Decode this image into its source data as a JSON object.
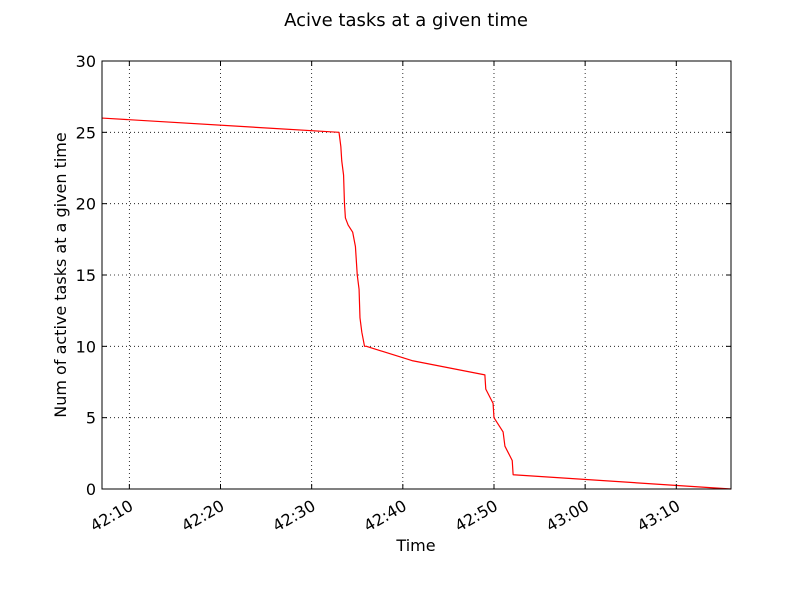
{
  "chart_data": {
    "type": "line",
    "title": "Acive tasks at a given time",
    "xlabel": "Time",
    "ylabel": "Num of active tasks at a given time",
    "x_unit": "MM:SS",
    "xlim": [
      "42:07",
      "43:16"
    ],
    "ylim": [
      0,
      30
    ],
    "x_ticks": [
      "42:10",
      "42:20",
      "42:30",
      "42:40",
      "42:50",
      "43:00",
      "43:10"
    ],
    "y_ticks": [
      "0",
      "5",
      "10",
      "15",
      "20",
      "25",
      "30"
    ],
    "grid": true,
    "series_color": "#ff0000",
    "series": [
      {
        "x": [
          "42:07",
          "42:33.0",
          "42:33.2",
          "42:33.3",
          "42:33.5",
          "42:33.6",
          "42:33.7",
          "42:34.0",
          "42:34.5",
          "42:34.8",
          "42:35.0",
          "42:35.2",
          "42:35.3",
          "42:35.5",
          "42:35.8",
          "42:36.0",
          "42:41.0",
          "42:49.0",
          "42:49.1",
          "42:49.5",
          "42:49.9",
          "42:50.0",
          "42:50.5",
          "42:51.0",
          "42:51.2",
          "42:52.0",
          "42:52.1",
          "43:16"
        ],
        "y": [
          26,
          25,
          24,
          23,
          22,
          20,
          19,
          18.5,
          18,
          17,
          15,
          14,
          12,
          11,
          10,
          10,
          9,
          8,
          7,
          6.5,
          6,
          5,
          4.5,
          4,
          3,
          2,
          1,
          0
        ]
      }
    ]
  }
}
